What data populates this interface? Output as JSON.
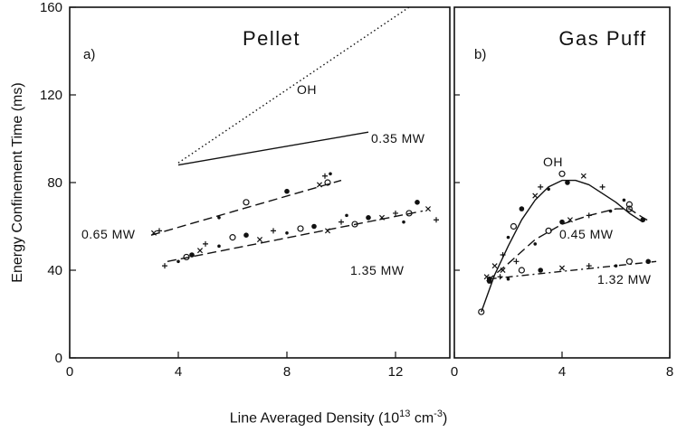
{
  "figure": {
    "ylabel": "Energy Confinement Time  (ms)",
    "xlabel_pre": "Line Averaged Density  (10",
    "xlabel_exp1": "13",
    "xlabel_mid": " cm",
    "xlabel_exp2": "-3",
    "xlabel_post": ")"
  },
  "chart_data": [
    {
      "type": "scatter",
      "panel": "a)",
      "title": "Pellet",
      "xlim": [
        0,
        14
      ],
      "ylim": [
        0,
        160
      ],
      "xticks": [
        "0",
        "4",
        "8",
        "12"
      ],
      "yticks": [
        "0",
        "40",
        "80",
        "120",
        "160"
      ],
      "ylabel": "Energy Confinement Time  (ms)",
      "series": [
        {
          "name": "OH",
          "style": "dotted",
          "line": [
            [
              4,
              89
            ],
            [
              12.5,
              160
            ]
          ]
        },
        {
          "name": "0.35 MW",
          "style": "solid",
          "line": [
            [
              4,
              88
            ],
            [
              11,
              103
            ]
          ]
        },
        {
          "name": "0.65 MW",
          "style": "dashed",
          "line": [
            [
              3,
              56
            ],
            [
              10,
              81
            ]
          ],
          "points": [
            [
              3.1,
              57
            ],
            [
              3.3,
              58
            ],
            [
              5.5,
              64
            ],
            [
              6.5,
              71
            ],
            [
              8,
              76
            ],
            [
              9.2,
              79
            ],
            [
              9.4,
              83
            ],
            [
              9.6,
              84
            ],
            [
              9.5,
              80
            ]
          ]
        },
        {
          "name": "1.35 MW",
          "style": "dashed",
          "line": [
            [
              3.6,
              44
            ],
            [
              13,
              67
            ]
          ],
          "points": [
            [
              3.5,
              42
            ],
            [
              4,
              44
            ],
            [
              4.3,
              46
            ],
            [
              4.5,
              47
            ],
            [
              4.8,
              49
            ],
            [
              5,
              52
            ],
            [
              5.5,
              51
            ],
            [
              6,
              55
            ],
            [
              6.5,
              56
            ],
            [
              7,
              54
            ],
            [
              7.5,
              58
            ],
            [
              8,
              57
            ],
            [
              8.5,
              59
            ],
            [
              9,
              60
            ],
            [
              9.5,
              58
            ],
            [
              10,
              62
            ],
            [
              10.2,
              65
            ],
            [
              10.5,
              61
            ],
            [
              11,
              64
            ],
            [
              11.5,
              64
            ],
            [
              12,
              66
            ],
            [
              12.3,
              62
            ],
            [
              12.5,
              66
            ],
            [
              12.8,
              71
            ],
            [
              13.2,
              68
            ],
            [
              13.5,
              63
            ]
          ]
        }
      ]
    },
    {
      "type": "scatter",
      "panel": "b)",
      "title": "Gas Puff",
      "xlim": [
        0,
        8
      ],
      "ylim": [
        0,
        160
      ],
      "xticks": [
        "0",
        "4",
        "8"
      ],
      "series": [
        {
          "name": "OH",
          "style": "solid",
          "line": [
            [
              1,
              21
            ],
            [
              1.5,
              38
            ],
            [
              2,
              51
            ],
            [
              2.5,
              63
            ],
            [
              3,
              72
            ],
            [
              3.5,
              78
            ],
            [
              4,
              81
            ],
            [
              4.5,
              81
            ],
            [
              5,
              79
            ],
            [
              5.5,
              75
            ],
            [
              6,
              71
            ],
            [
              6.5,
              66
            ],
            [
              7,
              62
            ]
          ],
          "points": [
            [
              1,
              21
            ],
            [
              1.3,
              36
            ],
            [
              1.5,
              42
            ],
            [
              1.8,
              47
            ],
            [
              2,
              55
            ],
            [
              2.2,
              60
            ],
            [
              2.5,
              68
            ],
            [
              3,
              74
            ],
            [
              3.2,
              78
            ],
            [
              3.5,
              77
            ],
            [
              4,
              84
            ],
            [
              4.2,
              80
            ],
            [
              4.8,
              83
            ],
            [
              5.5,
              78
            ],
            [
              6.3,
              72
            ],
            [
              6.5,
              68
            ]
          ]
        },
        {
          "name": "0.45 MW",
          "style": "dashed",
          "line": [
            [
              1.2,
              35
            ],
            [
              2,
              43
            ],
            [
              3,
              54
            ],
            [
              4,
              61
            ],
            [
              5,
              65
            ],
            [
              6,
              68
            ],
            [
              6.5,
              68
            ],
            [
              7,
              64
            ],
            [
              7.3,
              62
            ]
          ],
          "points": [
            [
              1.3,
              35
            ],
            [
              1.8,
              40
            ],
            [
              2.3,
              44
            ],
            [
              3,
              52
            ],
            [
              3.5,
              58
            ],
            [
              4,
              62
            ],
            [
              4.3,
              63
            ],
            [
              5,
              65
            ],
            [
              5.8,
              67
            ],
            [
              6.5,
              70
            ],
            [
              7,
              63
            ]
          ]
        },
        {
          "name": "1.32 MW",
          "style": "dashdot",
          "line": [
            [
              1.3,
              36
            ],
            [
              7.5,
              44
            ]
          ],
          "points": [
            [
              1.2,
              37
            ],
            [
              1.7,
              37
            ],
            [
              2,
              36
            ],
            [
              2.5,
              40
            ],
            [
              3.2,
              40
            ],
            [
              4,
              41
            ],
            [
              5,
              42
            ],
            [
              6,
              42
            ],
            [
              6.5,
              44
            ],
            [
              7.2,
              44
            ]
          ]
        }
      ]
    }
  ]
}
